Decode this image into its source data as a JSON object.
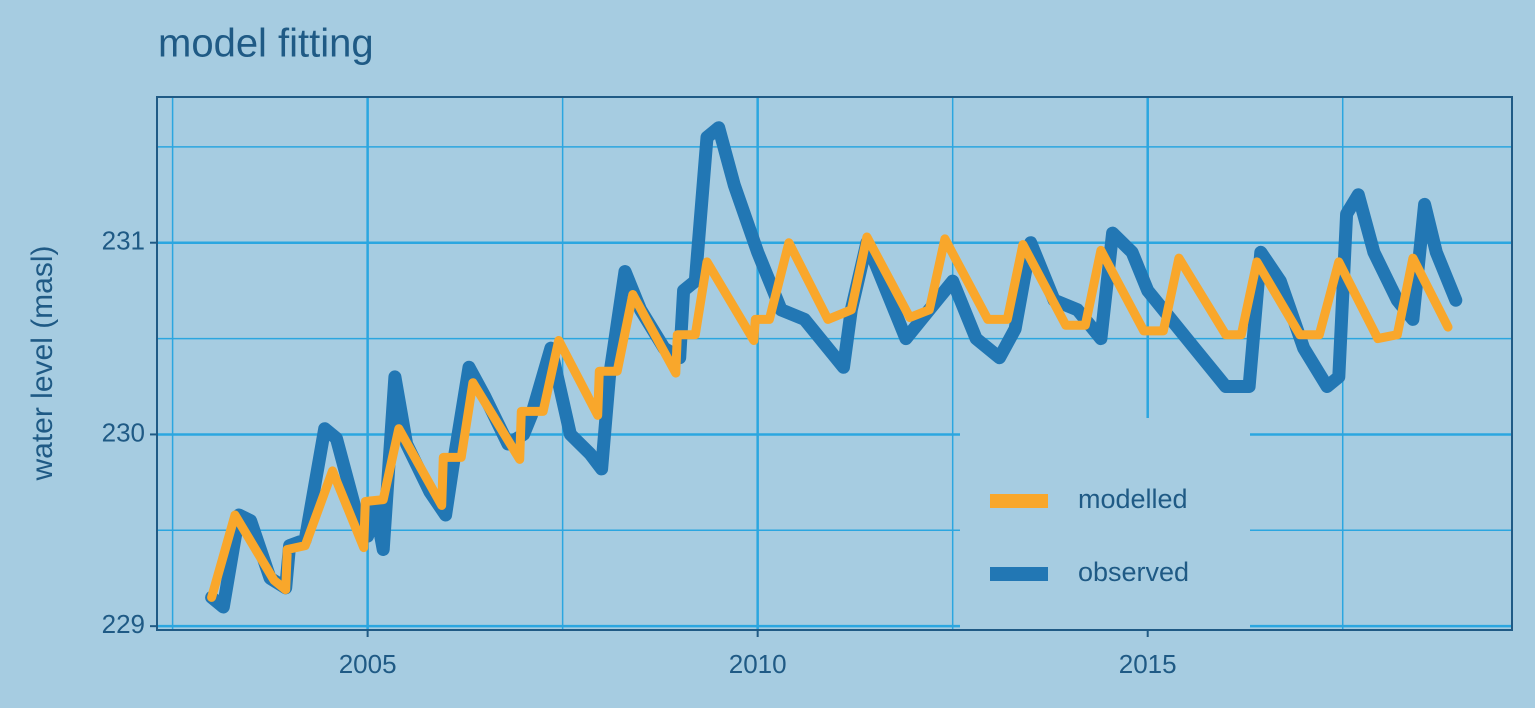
{
  "chart_data": {
    "type": "line",
    "title": "model fitting",
    "y_label": "water level (masl)",
    "xlim": [
      2002.3,
      2019.67
    ],
    "xticks": [
      2005,
      2010,
      2015
    ],
    "x_minor_grid": [
      2002.5,
      2007.5,
      2012.5,
      2017.5
    ],
    "ylim": [
      228.98,
      231.76
    ],
    "yticks": [
      229,
      230,
      231
    ],
    "y_minor_grid": [
      229.5,
      230.5,
      231.5
    ],
    "grid": true,
    "legend": "bottom-right",
    "series": [
      {
        "name": "observed",
        "color": "#2277b4",
        "x": [
          2003.0,
          2003.15,
          2003.35,
          2003.5,
          2003.75,
          2003.95,
          2004.0,
          2004.2,
          2004.45,
          2004.6,
          2004.85,
          2005.0,
          2005.1,
          2005.2,
          2005.35,
          2005.5,
          2005.8,
          2006.0,
          2006.1,
          2006.3,
          2006.5,
          2006.8,
          2007.0,
          2007.1,
          2007.35,
          2007.6,
          2007.85,
          2008.0,
          2008.1,
          2008.3,
          2008.5,
          2008.8,
          2009.0,
          2009.05,
          2009.2,
          2009.35,
          2009.5,
          2009.7,
          2010.0,
          2010.3,
          2010.6,
          2011.0,
          2011.1,
          2011.2,
          2011.4,
          2011.7,
          2011.9,
          2012.1,
          2012.3,
          2012.5,
          2012.8,
          2013.1,
          2013.3,
          2013.5,
          2013.8,
          2014.1,
          2014.4,
          2014.55,
          2014.8,
          2015.0,
          2015.3,
          2015.6,
          2015.9,
          2016.0,
          2016.3,
          2016.45,
          2016.7,
          2017.0,
          2017.3,
          2017.45,
          2017.55,
          2017.7,
          2017.9,
          2018.2,
          2018.4,
          2018.55,
          2018.7,
          2018.95
        ],
        "values": [
          229.15,
          229.1,
          229.58,
          229.55,
          229.25,
          229.2,
          229.42,
          229.45,
          230.03,
          229.98,
          229.6,
          229.47,
          229.62,
          229.4,
          230.3,
          229.95,
          229.7,
          229.58,
          229.85,
          230.35,
          230.2,
          229.95,
          230.0,
          230.1,
          230.45,
          230.0,
          229.9,
          229.82,
          230.3,
          230.85,
          230.65,
          230.45,
          230.4,
          230.75,
          230.8,
          231.55,
          231.6,
          231.3,
          230.95,
          230.65,
          230.6,
          230.4,
          230.35,
          230.65,
          231.0,
          230.7,
          230.5,
          230.6,
          230.7,
          230.8,
          230.5,
          230.4,
          230.55,
          231.0,
          230.7,
          230.65,
          230.5,
          231.05,
          230.95,
          230.75,
          230.6,
          230.45,
          230.3,
          230.25,
          230.25,
          230.95,
          230.8,
          230.45,
          230.25,
          230.3,
          231.15,
          231.25,
          230.95,
          230.7,
          230.6,
          231.2,
          230.95,
          230.7
        ]
      },
      {
        "name": "modelled",
        "color": "#f9a72b",
        "x": [
          2003.0,
          2003.3,
          2003.8,
          2003.95,
          2003.97,
          2004.2,
          2004.55,
          2004.95,
          2004.97,
          2005.2,
          2005.4,
          2005.95,
          2005.97,
          2006.2,
          2006.35,
          2006.95,
          2006.97,
          2007.25,
          2007.45,
          2007.95,
          2007.97,
          2008.2,
          2008.4,
          2008.95,
          2008.97,
          2009.2,
          2009.35,
          2009.95,
          2009.97,
          2010.15,
          2010.4,
          2010.9,
          2011.2,
          2011.4,
          2011.95,
          2012.2,
          2012.4,
          2012.95,
          2013.2,
          2013.4,
          2013.95,
          2014.2,
          2014.4,
          2014.95,
          2015.2,
          2015.4,
          2016.0,
          2016.2,
          2016.4,
          2016.95,
          2017.2,
          2017.45,
          2017.95,
          2018.2,
          2018.4,
          2018.85
        ],
        "values": [
          229.15,
          229.58,
          229.24,
          229.19,
          229.4,
          229.42,
          229.81,
          229.41,
          229.65,
          229.66,
          230.03,
          229.63,
          229.88,
          229.88,
          230.27,
          229.87,
          230.12,
          230.12,
          230.49,
          230.1,
          230.33,
          230.33,
          230.73,
          230.32,
          230.52,
          230.52,
          230.9,
          230.49,
          230.6,
          230.6,
          231.0,
          230.6,
          230.65,
          231.03,
          230.61,
          230.65,
          231.02,
          230.6,
          230.6,
          230.99,
          230.57,
          230.57,
          230.96,
          230.54,
          230.54,
          230.92,
          230.52,
          230.52,
          230.9,
          230.52,
          230.52,
          230.9,
          230.5,
          230.52,
          230.92,
          230.56
        ]
      }
    ]
  }
}
